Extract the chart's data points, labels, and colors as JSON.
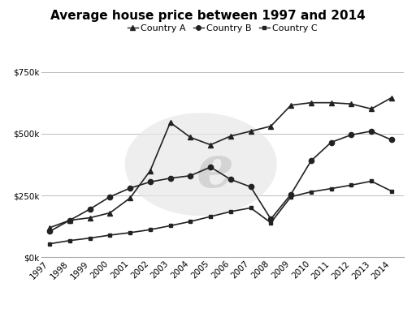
{
  "title": "Average house price between 1997 and 2014",
  "years": [
    1997,
    1998,
    1999,
    2000,
    2001,
    2002,
    2003,
    2004,
    2005,
    2006,
    2007,
    2008,
    2009,
    2010,
    2011,
    2012,
    2013,
    2014
  ],
  "country_a": [
    120000,
    150000,
    160000,
    180000,
    240000,
    350000,
    545000,
    485000,
    455000,
    490000,
    510000,
    530000,
    615000,
    625000,
    625000,
    620000,
    600000,
    645000
  ],
  "country_b": [
    105000,
    150000,
    195000,
    245000,
    280000,
    305000,
    320000,
    330000,
    365000,
    315000,
    285000,
    155000,
    255000,
    390000,
    465000,
    495000,
    510000,
    475000
  ],
  "country_c": [
    55000,
    68000,
    78000,
    90000,
    100000,
    112000,
    128000,
    145000,
    165000,
    185000,
    200000,
    140000,
    245000,
    265000,
    278000,
    292000,
    308000,
    268000
  ],
  "legend_labels": [
    "Country A",
    "Country B",
    "Country C"
  ],
  "marker_a": "^",
  "marker_b": "o",
  "marker_c": "s",
  "line_color": "#222222",
  "ylim": [
    0,
    800000
  ],
  "yticks": [
    0,
    250000,
    500000,
    750000
  ],
  "ytick_labels": [
    "$0k",
    "$250k",
    "$500k",
    "$750k"
  ],
  "background_color": "#ffffff",
  "title_fontsize": 11,
  "legend_fontsize": 8,
  "tick_fontsize": 7.5
}
